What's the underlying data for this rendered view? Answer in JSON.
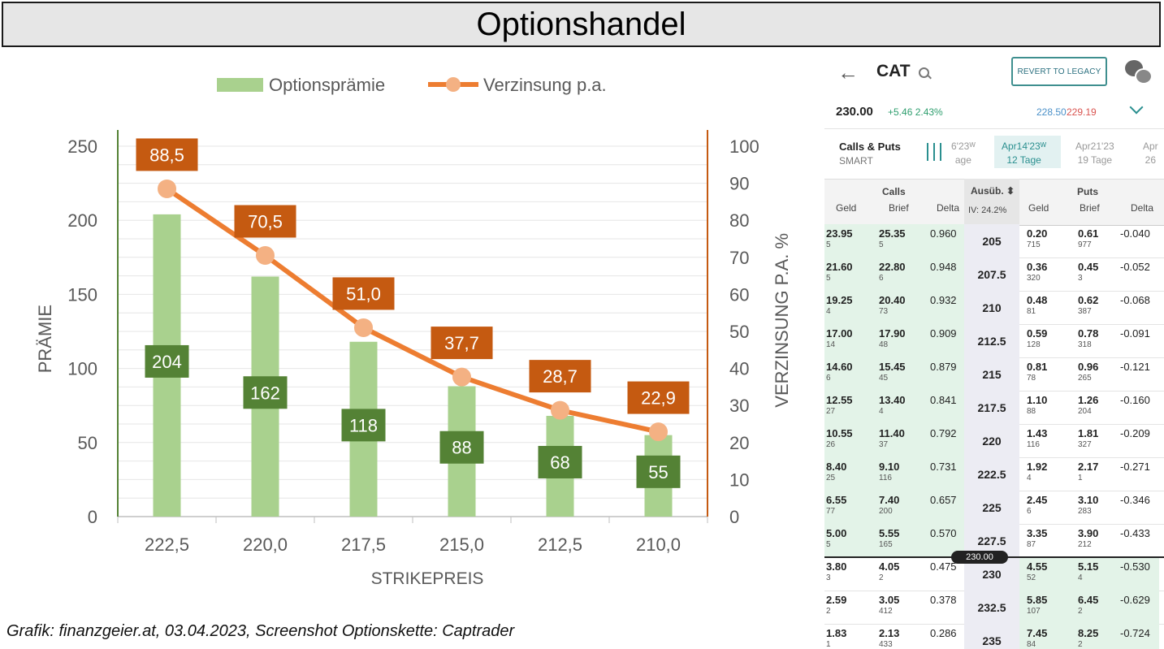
{
  "header": {
    "title": "Optionshandel"
  },
  "caption": "Grafik: finanzgeier.at, 03.04.2023, Screenshot Optionskette: Captrader",
  "colors": {
    "bar": "#a9d18e",
    "bar_label": "#548235",
    "line": "#ed7d31",
    "marker": "#f4b183",
    "line_label": "#c55a11",
    "left_axis": "#548235",
    "right_axis": "#c55a11"
  },
  "chart_data": {
    "type": "bar+line",
    "title": "",
    "xlabel": "STRIKEPREIS",
    "ylabel": "PRÄMIE",
    "y2label": "VERZINSUNG P.A. %",
    "categories": [
      "222,5",
      "220,0",
      "217,5",
      "215,0",
      "212,5",
      "210,0"
    ],
    "ylim": [
      0,
      250
    ],
    "y2lim": [
      0,
      100
    ],
    "yticks": [
      "0",
      "50",
      "100",
      "150",
      "200",
      "250"
    ],
    "y2ticks": [
      "0",
      "10",
      "20",
      "30",
      "40",
      "50",
      "60",
      "70",
      "80",
      "90",
      "100"
    ],
    "legend_position": "top",
    "grid": true,
    "series": [
      {
        "name": "Optionsprämie",
        "type": "bar",
        "axis": "left",
        "values": [
          204,
          162,
          118,
          88,
          68,
          55
        ],
        "labels": [
          "204",
          "162",
          "118",
          "88",
          "68",
          "55"
        ]
      },
      {
        "name": "Verzinsung p.a.",
        "type": "line",
        "axis": "right",
        "values": [
          88.5,
          70.5,
          51.0,
          37.7,
          28.7,
          22.9
        ],
        "labels": [
          "88,5",
          "70,5",
          "51,0",
          "37,7",
          "28,7",
          "22,9"
        ]
      }
    ]
  },
  "phone": {
    "ticker": "CAT",
    "legacy_button": "REVERT TO LEGACY",
    "price": "230.00",
    "change": "+5.46  2.43%",
    "bid": "228.50",
    "ask": "229.19",
    "calls_puts": "Calls & Puts",
    "exchange": "SMART",
    "expiries": [
      {
        "date": "6'23ᵂ",
        "days": "age"
      },
      {
        "date": "Apr14'23ᵂ",
        "days": "12 Tage"
      },
      {
        "date": "Apr21'23",
        "days": "19 Tage"
      },
      {
        "date": "Apr",
        "days": "26"
      }
    ],
    "head": {
      "calls": "Calls",
      "puts": "Puts",
      "strike": "Ausüb. ⬍",
      "iv": "IV: 24.2%",
      "geld": "Geld",
      "brief": "Brief",
      "delta": "Delta"
    },
    "current_price_label": "230.00",
    "rows": [
      {
        "cb": "23.95",
        "cbs": "5",
        "ca": "25.35",
        "cas": "5",
        "cd": "0.960",
        "strike": "205",
        "pb": "0.20",
        "pbs": "715",
        "pa": "0.61",
        "pas": "977",
        "pd": "-0.040"
      },
      {
        "cb": "21.60",
        "cbs": "5",
        "ca": "22.80",
        "cas": "6",
        "cd": "0.948",
        "strike": "207.5",
        "pb": "0.36",
        "pbs": "320",
        "pa": "0.45",
        "pas": "3",
        "pd": "-0.052"
      },
      {
        "cb": "19.25",
        "cbs": "4",
        "ca": "20.40",
        "cas": "73",
        "cd": "0.932",
        "strike": "210",
        "pb": "0.48",
        "pbs": "81",
        "pa": "0.62",
        "pas": "387",
        "pd": "-0.068"
      },
      {
        "cb": "17.00",
        "cbs": "14",
        "ca": "17.90",
        "cas": "48",
        "cd": "0.909",
        "strike": "212.5",
        "pb": "0.59",
        "pbs": "128",
        "pa": "0.78",
        "pas": "318",
        "pd": "-0.091"
      },
      {
        "cb": "14.60",
        "cbs": "6",
        "ca": "15.45",
        "cas": "45",
        "cd": "0.879",
        "strike": "215",
        "pb": "0.81",
        "pbs": "78",
        "pa": "0.96",
        "pas": "265",
        "pd": "-0.121"
      },
      {
        "cb": "12.55",
        "cbs": "27",
        "ca": "13.40",
        "cas": "4",
        "cd": "0.841",
        "strike": "217.5",
        "pb": "1.10",
        "pbs": "88",
        "pa": "1.26",
        "pas": "204",
        "pd": "-0.160"
      },
      {
        "cb": "10.55",
        "cbs": "26",
        "ca": "11.40",
        "cas": "37",
        "cd": "0.792",
        "strike": "220",
        "pb": "1.43",
        "pbs": "116",
        "pa": "1.81",
        "pas": "327",
        "pd": "-0.209"
      },
      {
        "cb": "8.40",
        "cbs": "25",
        "ca": "9.10",
        "cas": "116",
        "cd": "0.731",
        "strike": "222.5",
        "pb": "1.92",
        "pbs": "4",
        "pa": "2.17",
        "pas": "1",
        "pd": "-0.271"
      },
      {
        "cb": "6.55",
        "cbs": "77",
        "ca": "7.40",
        "cas": "200",
        "cd": "0.657",
        "strike": "225",
        "pb": "2.45",
        "pbs": "6",
        "pa": "3.10",
        "pas": "283",
        "pd": "-0.346"
      },
      {
        "cb": "5.00",
        "cbs": "5",
        "ca": "5.55",
        "cas": "165",
        "cd": "0.570",
        "strike": "227.5",
        "pb": "3.35",
        "pbs": "87",
        "pa": "3.90",
        "pas": "212",
        "pd": "-0.433"
      },
      {
        "cb": "3.80",
        "cbs": "3",
        "ca": "4.05",
        "cas": "2",
        "cd": "0.475",
        "strike": "230",
        "pb": "4.55",
        "pbs": "52",
        "pa": "5.15",
        "pas": "4",
        "pd": "-0.530"
      },
      {
        "cb": "2.59",
        "cbs": "2",
        "ca": "3.05",
        "cas": "412",
        "cd": "0.378",
        "strike": "232.5",
        "pb": "5.85",
        "pbs": "107",
        "pa": "6.45",
        "pas": "2",
        "pd": "-0.629"
      },
      {
        "cb": "1.83",
        "cbs": "1",
        "ca": "2.13",
        "cas": "433",
        "cd": "0.286",
        "strike": "235",
        "pb": "7.45",
        "pbs": "84",
        "pa": "8.25",
        "pas": "2",
        "pd": "-0.724"
      }
    ]
  }
}
